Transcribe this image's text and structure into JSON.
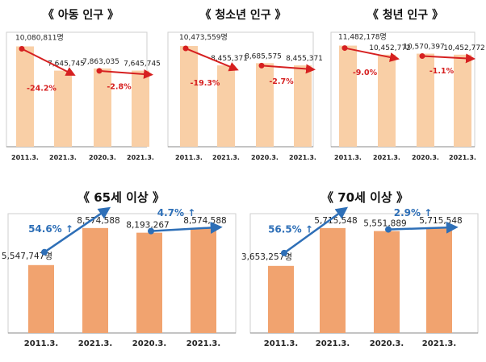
{
  "chart_data": [
    {
      "type": "bar",
      "title": "《 아동 인구 》",
      "categories": [
        "2011.3.",
        "2021.3.",
        "2020.3.",
        "2021.3."
      ],
      "values": [
        10080811,
        7645745,
        7863035,
        7645745
      ],
      "value_labels": [
        "10,080,811명",
        "7,645,745",
        "7,863,035",
        "7,645,745"
      ],
      "changes": [
        {
          "from": 0,
          "to": 1,
          "label": "-24.2%",
          "direction": "down"
        },
        {
          "from": 2,
          "to": 3,
          "label": "-2.8%",
          "direction": "down"
        }
      ],
      "ylim": [
        0,
        11500000
      ],
      "bar_color": "#f9cfa6",
      "arrow_color": "#d62020"
    },
    {
      "type": "bar",
      "title": "《 청소년 인구 》",
      "categories": [
        "2011.3.",
        "2021.3.",
        "2020.3.",
        "2021.3."
      ],
      "values": [
        10473559,
        8455371,
        8685575,
        8455371
      ],
      "value_labels": [
        "10,473,559명",
        "8,455,371",
        "8,685,575",
        "8,455,371"
      ],
      "changes": [
        {
          "from": 0,
          "to": 1,
          "label": "-19.3%",
          "direction": "down"
        },
        {
          "from": 2,
          "to": 3,
          "label": "-2.7%",
          "direction": "down"
        }
      ],
      "ylim": [
        0,
        11900000
      ],
      "bar_color": "#f9cfa6",
      "arrow_color": "#d62020"
    },
    {
      "type": "bar",
      "title": "《 청년 인구 》",
      "categories": [
        "2011.3.",
        "2021.3.",
        "2020.3.",
        "2021.3."
      ],
      "values": [
        11482178,
        10452772,
        10570397,
        10452772
      ],
      "value_labels": [
        "11,482,178명",
        "10,452,772",
        "10,570,397",
        "10,452,772"
      ],
      "changes": [
        {
          "from": 0,
          "to": 1,
          "label": "-9.0%",
          "direction": "down"
        },
        {
          "from": 2,
          "to": 3,
          "label": "-1.1%",
          "direction": "down"
        }
      ],
      "ylim": [
        0,
        13000000
      ],
      "bar_color": "#f9cfa6",
      "arrow_color": "#d62020"
    },
    {
      "type": "bar",
      "title": "《 65세 이상 》",
      "categories": [
        "2011.3.",
        "2021.3.",
        "2020.3.",
        "2021.3."
      ],
      "values": [
        5547747,
        8574588,
        8193267,
        8574588
      ],
      "value_labels": [
        "5,547,747명",
        "8,574,588",
        "8,193,267",
        "8,574,588"
      ],
      "changes": [
        {
          "from": 0,
          "to": 1,
          "label": "54.6% ↑",
          "direction": "up"
        },
        {
          "from": 2,
          "to": 3,
          "label": "4.7% ↑",
          "direction": "up"
        }
      ],
      "ylim": [
        0,
        9750000
      ],
      "bar_color": "#f1a36f",
      "arrow_color": "#2e6fb7"
    },
    {
      "type": "bar",
      "title": "《 70세 이상 》",
      "categories": [
        "2011.3.",
        "2021.3.",
        "2020.3.",
        "2021.3."
      ],
      "values": [
        3653257,
        5715548,
        5551889,
        5715548
      ],
      "value_labels": [
        "3,653,257명",
        "5,715,548",
        "5,551,889",
        "5,715,548"
      ],
      "changes": [
        {
          "from": 0,
          "to": 1,
          "label": "56.5% ↑",
          "direction": "up"
        },
        {
          "from": 2,
          "to": 3,
          "label": "2.9% ↑",
          "direction": "up"
        }
      ],
      "ylim": [
        0,
        6500000
      ],
      "bar_color": "#f1a36f",
      "arrow_color": "#2e6fb7"
    }
  ]
}
